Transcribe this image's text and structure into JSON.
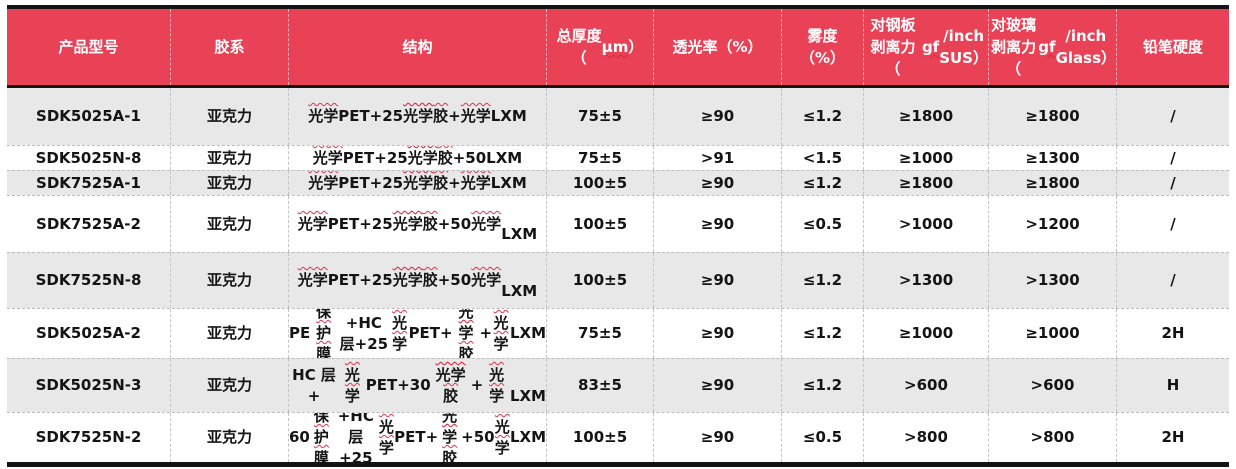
{
  "table": {
    "columns": [
      {
        "key": "model",
        "label": "产品型号"
      },
      {
        "key": "adhesive",
        "label": "胶系"
      },
      {
        "key": "structure",
        "label": "结构"
      },
      {
        "key": "thickness",
        "label": "总厚度\n（μm）"
      },
      {
        "key": "transmittance",
        "label": "透光率（%）"
      },
      {
        "key": "haze",
        "label": "雾度\n（%）"
      },
      {
        "key": "peel_sus",
        "label": "对钢板剥离力\n（gf/inch\nSUS）"
      },
      {
        "key": "peel_glass",
        "label": "对玻璃剥离力\n（gf/inch\nGlass）"
      },
      {
        "key": "hardness",
        "label": "铅笔硬度"
      }
    ],
    "rows": [
      {
        "model": "SDK5025A-1",
        "adhesive": "亚克力",
        "structure": "光学 PET+25 光学胶+光学 LXM",
        "thickness": "75±5",
        "transmittance": "≥90",
        "haze": "≤1.2",
        "peel_sus": "≥1800",
        "peel_glass": "≥1800",
        "hardness": "/"
      },
      {
        "model": "SDK5025N-8",
        "adhesive": "亚克力",
        "structure": "光学 PET+25 光学胶+50LXM",
        "thickness": "75±5",
        "transmittance": ">91",
        "haze": "<1.5",
        "peel_sus": "≥1000",
        "peel_glass": "≥1300",
        "hardness": "/"
      },
      {
        "model": "SDK7525A-1",
        "adhesive": "亚克力",
        "structure": "光学 PET+25 光学胶+光学 LXM",
        "thickness": "100±5",
        "transmittance": "≥90",
        "haze": "≤1.2",
        "peel_sus": "≥1800",
        "peel_glass": "≥1800",
        "hardness": "/"
      },
      {
        "model": "SDK7525A-2",
        "adhesive": "亚克力",
        "structure": "光学 PET+25 光学胶+50 光学\nLXM",
        "thickness": "100±5",
        "transmittance": "≥90",
        "haze": "≤0.5",
        "peel_sus": ">1000",
        "peel_glass": ">1200",
        "hardness": "/"
      },
      {
        "model": "SDK7525N-8",
        "adhesive": "亚克力",
        "structure": "光学 PET+25 光学胶+50 光学\nLXM",
        "thickness": "100±5",
        "transmittance": "≥90",
        "haze": "≤1.2",
        "peel_sus": ">1300",
        "peel_glass": ">1300",
        "hardness": "/"
      },
      {
        "model": "SDK5025A-2",
        "adhesive": "亚克力",
        "structure": "PE 保护膜+HC 层+25 光学 PET+\n光学胶+光学 LXM",
        "thickness": "75±5",
        "transmittance": "≥90",
        "haze": "≤1.2",
        "peel_sus": "≥1000",
        "peel_glass": "≥1000",
        "hardness": "2H"
      },
      {
        "model": "SDK5025N-3",
        "adhesive": "亚克力",
        "structure": "HC 层+光学 PET+30 光学胶+光学\nLXM",
        "thickness": "83±5",
        "transmittance": "≥90",
        "haze": "≤1.2",
        "peel_sus": ">600",
        "peel_glass": ">600",
        "hardness": "H"
      },
      {
        "model": "SDK7525N-2",
        "adhesive": "亚克力",
        "structure": "60 保护膜+HC 层+25 光学 PET+\n光学胶+50 光学 LXM",
        "thickness": "100±5",
        "transmittance": "≥90",
        "haze": "≤0.5",
        "peel_sus": ">800",
        "peel_glass": ">800",
        "hardness": "2H"
      }
    ]
  },
  "colors": {
    "header_bg": "#E94257",
    "header_text": "#FFFFFF",
    "row_shade_bg": "#E8E8E8",
    "row_plain_bg": "#FFFFFF",
    "body_text": "#141414",
    "heavy_border": "#141414",
    "squiggle": "#CF2B3F"
  },
  "squiggles": [
    {
      "text": "光学胶",
      "pos": "top"
    },
    {
      "text": "光学",
      "pos": "top"
    },
    {
      "text": "保护膜",
      "pos": "top"
    },
    {
      "text": "μm",
      "pos": "bottom"
    },
    {
      "text": "gf",
      "pos": "bottom"
    }
  ]
}
